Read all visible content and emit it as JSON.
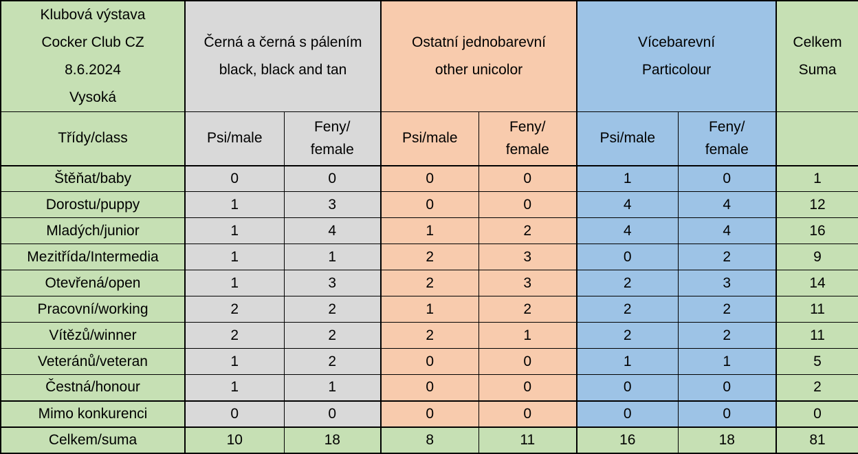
{
  "colors": {
    "green": "#c6e0b4",
    "gray": "#d9d9d9",
    "orange": "#f8cbad",
    "blue": "#9dc3e6",
    "border": "#000000",
    "text": "#000000"
  },
  "chart_data": {
    "type": "table",
    "title_lines": [
      "Klubová výstava",
      "Cocker Club CZ",
      "8.6.2024",
      "Vysoká"
    ],
    "class_header": "Třídy/class",
    "groups": [
      {
        "name": "black-and-tan",
        "label_lines": [
          "Černá a černá s pálením",
          "black, black and tan"
        ],
        "color": "#d9d9d9"
      },
      {
        "name": "other-unicolor",
        "label_lines": [
          "Ostatní jednobarevní",
          "other unicolor"
        ],
        "color": "#f8cbad"
      },
      {
        "name": "particolour",
        "label_lines": [
          "Vícebarevní",
          "Particolour"
        ],
        "color": "#9dc3e6"
      }
    ],
    "total_header_lines": [
      "Celkem",
      "Suma"
    ],
    "sub_header_male": "Psi/male",
    "sub_header_female_lines": [
      "Feny/",
      "female"
    ],
    "columns": [
      "Třídy/class",
      "Černá a černá s pálením Psi/male",
      "Černá a černá s pálením Feny/female",
      "Ostatní jednobarevní Psi/male",
      "Ostatní jednobarevní Feny/female",
      "Vícebarevní Psi/male",
      "Vícebarevní Feny/female",
      "Celkem Suma"
    ],
    "rows": [
      {
        "label": "Štěňat/baby",
        "values": [
          0,
          0,
          0,
          0,
          1,
          0
        ],
        "total": 1
      },
      {
        "label": "Dorostu/puppy",
        "values": [
          1,
          3,
          0,
          0,
          4,
          4
        ],
        "total": 12
      },
      {
        "label": "Mladých/junior",
        "values": [
          1,
          4,
          1,
          2,
          4,
          4
        ],
        "total": 16
      },
      {
        "label": "Mezitřída/Intermedia",
        "values": [
          1,
          1,
          2,
          3,
          0,
          2
        ],
        "total": 9
      },
      {
        "label": "Otevřená/open",
        "values": [
          1,
          3,
          2,
          3,
          2,
          3
        ],
        "total": 14
      },
      {
        "label": "Pracovní/working",
        "values": [
          2,
          2,
          1,
          2,
          2,
          2
        ],
        "total": 11
      },
      {
        "label": "Vítězů/winner",
        "values": [
          2,
          2,
          2,
          1,
          2,
          2
        ],
        "total": 11
      },
      {
        "label": "Veteránů/veteran",
        "values": [
          1,
          2,
          0,
          0,
          1,
          1
        ],
        "total": 5
      },
      {
        "label": "Čestná/honour",
        "values": [
          1,
          1,
          0,
          0,
          0,
          0
        ],
        "total": 2
      },
      {
        "label": "Mimo konkurenci",
        "values": [
          0,
          0,
          0,
          0,
          0,
          0
        ],
        "total": 0
      }
    ],
    "total_row": {
      "label": "Celkem/suma",
      "values": [
        10,
        18,
        8,
        11,
        16,
        18
      ],
      "total": 81
    }
  }
}
